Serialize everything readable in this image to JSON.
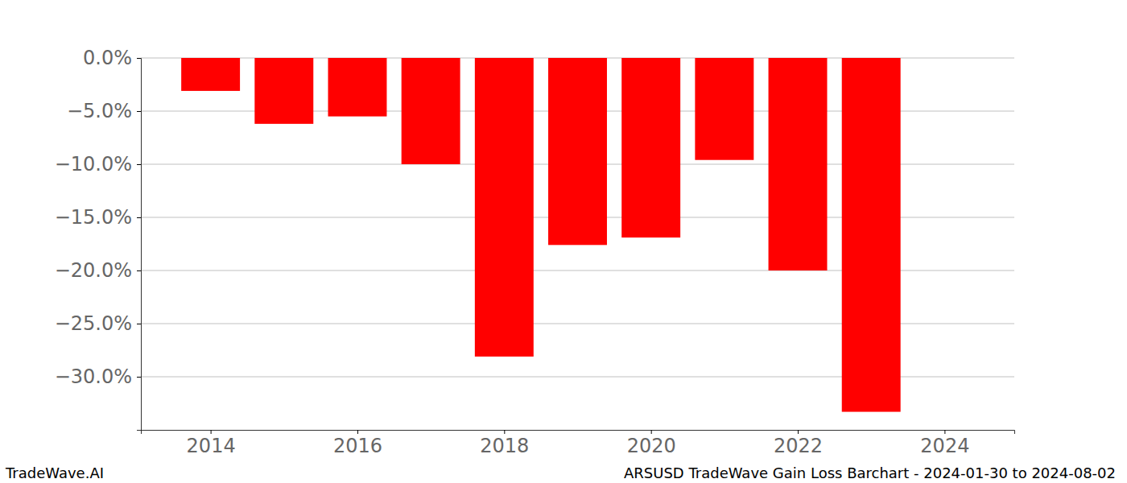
{
  "chart_data": {
    "type": "bar",
    "title": "ARSUSD TradeWave Gain Loss Barchart - 2024-01-30 to 2024-08-02",
    "annotations": [
      "TradeWave.AI"
    ],
    "x": [
      2014,
      2015,
      2016,
      2017,
      2018,
      2019,
      2020,
      2021,
      2022,
      2023
    ],
    "values": [
      -3.1,
      -6.2,
      -5.5,
      -10.0,
      -28.1,
      -17.6,
      -16.9,
      -9.6,
      -20.0,
      -33.3
    ],
    "color": "#ff0000",
    "xlim": [
      2013.05,
      2024.95
    ],
    "xticks": [
      2014,
      2016,
      2018,
      2020,
      2022,
      2024
    ],
    "ylim": [
      -35,
      0
    ],
    "yticks": [
      {
        "value": 0,
        "label": "0.0%"
      },
      {
        "value": -5,
        "label": "−5.0%"
      },
      {
        "value": -10,
        "label": "−10.0%"
      },
      {
        "value": -15,
        "label": "−15.0%"
      },
      {
        "value": -20,
        "label": "−20.0%"
      },
      {
        "value": -25,
        "label": "−25.0%"
      },
      {
        "value": -30,
        "label": "−30.0%"
      }
    ],
    "grid": true
  }
}
